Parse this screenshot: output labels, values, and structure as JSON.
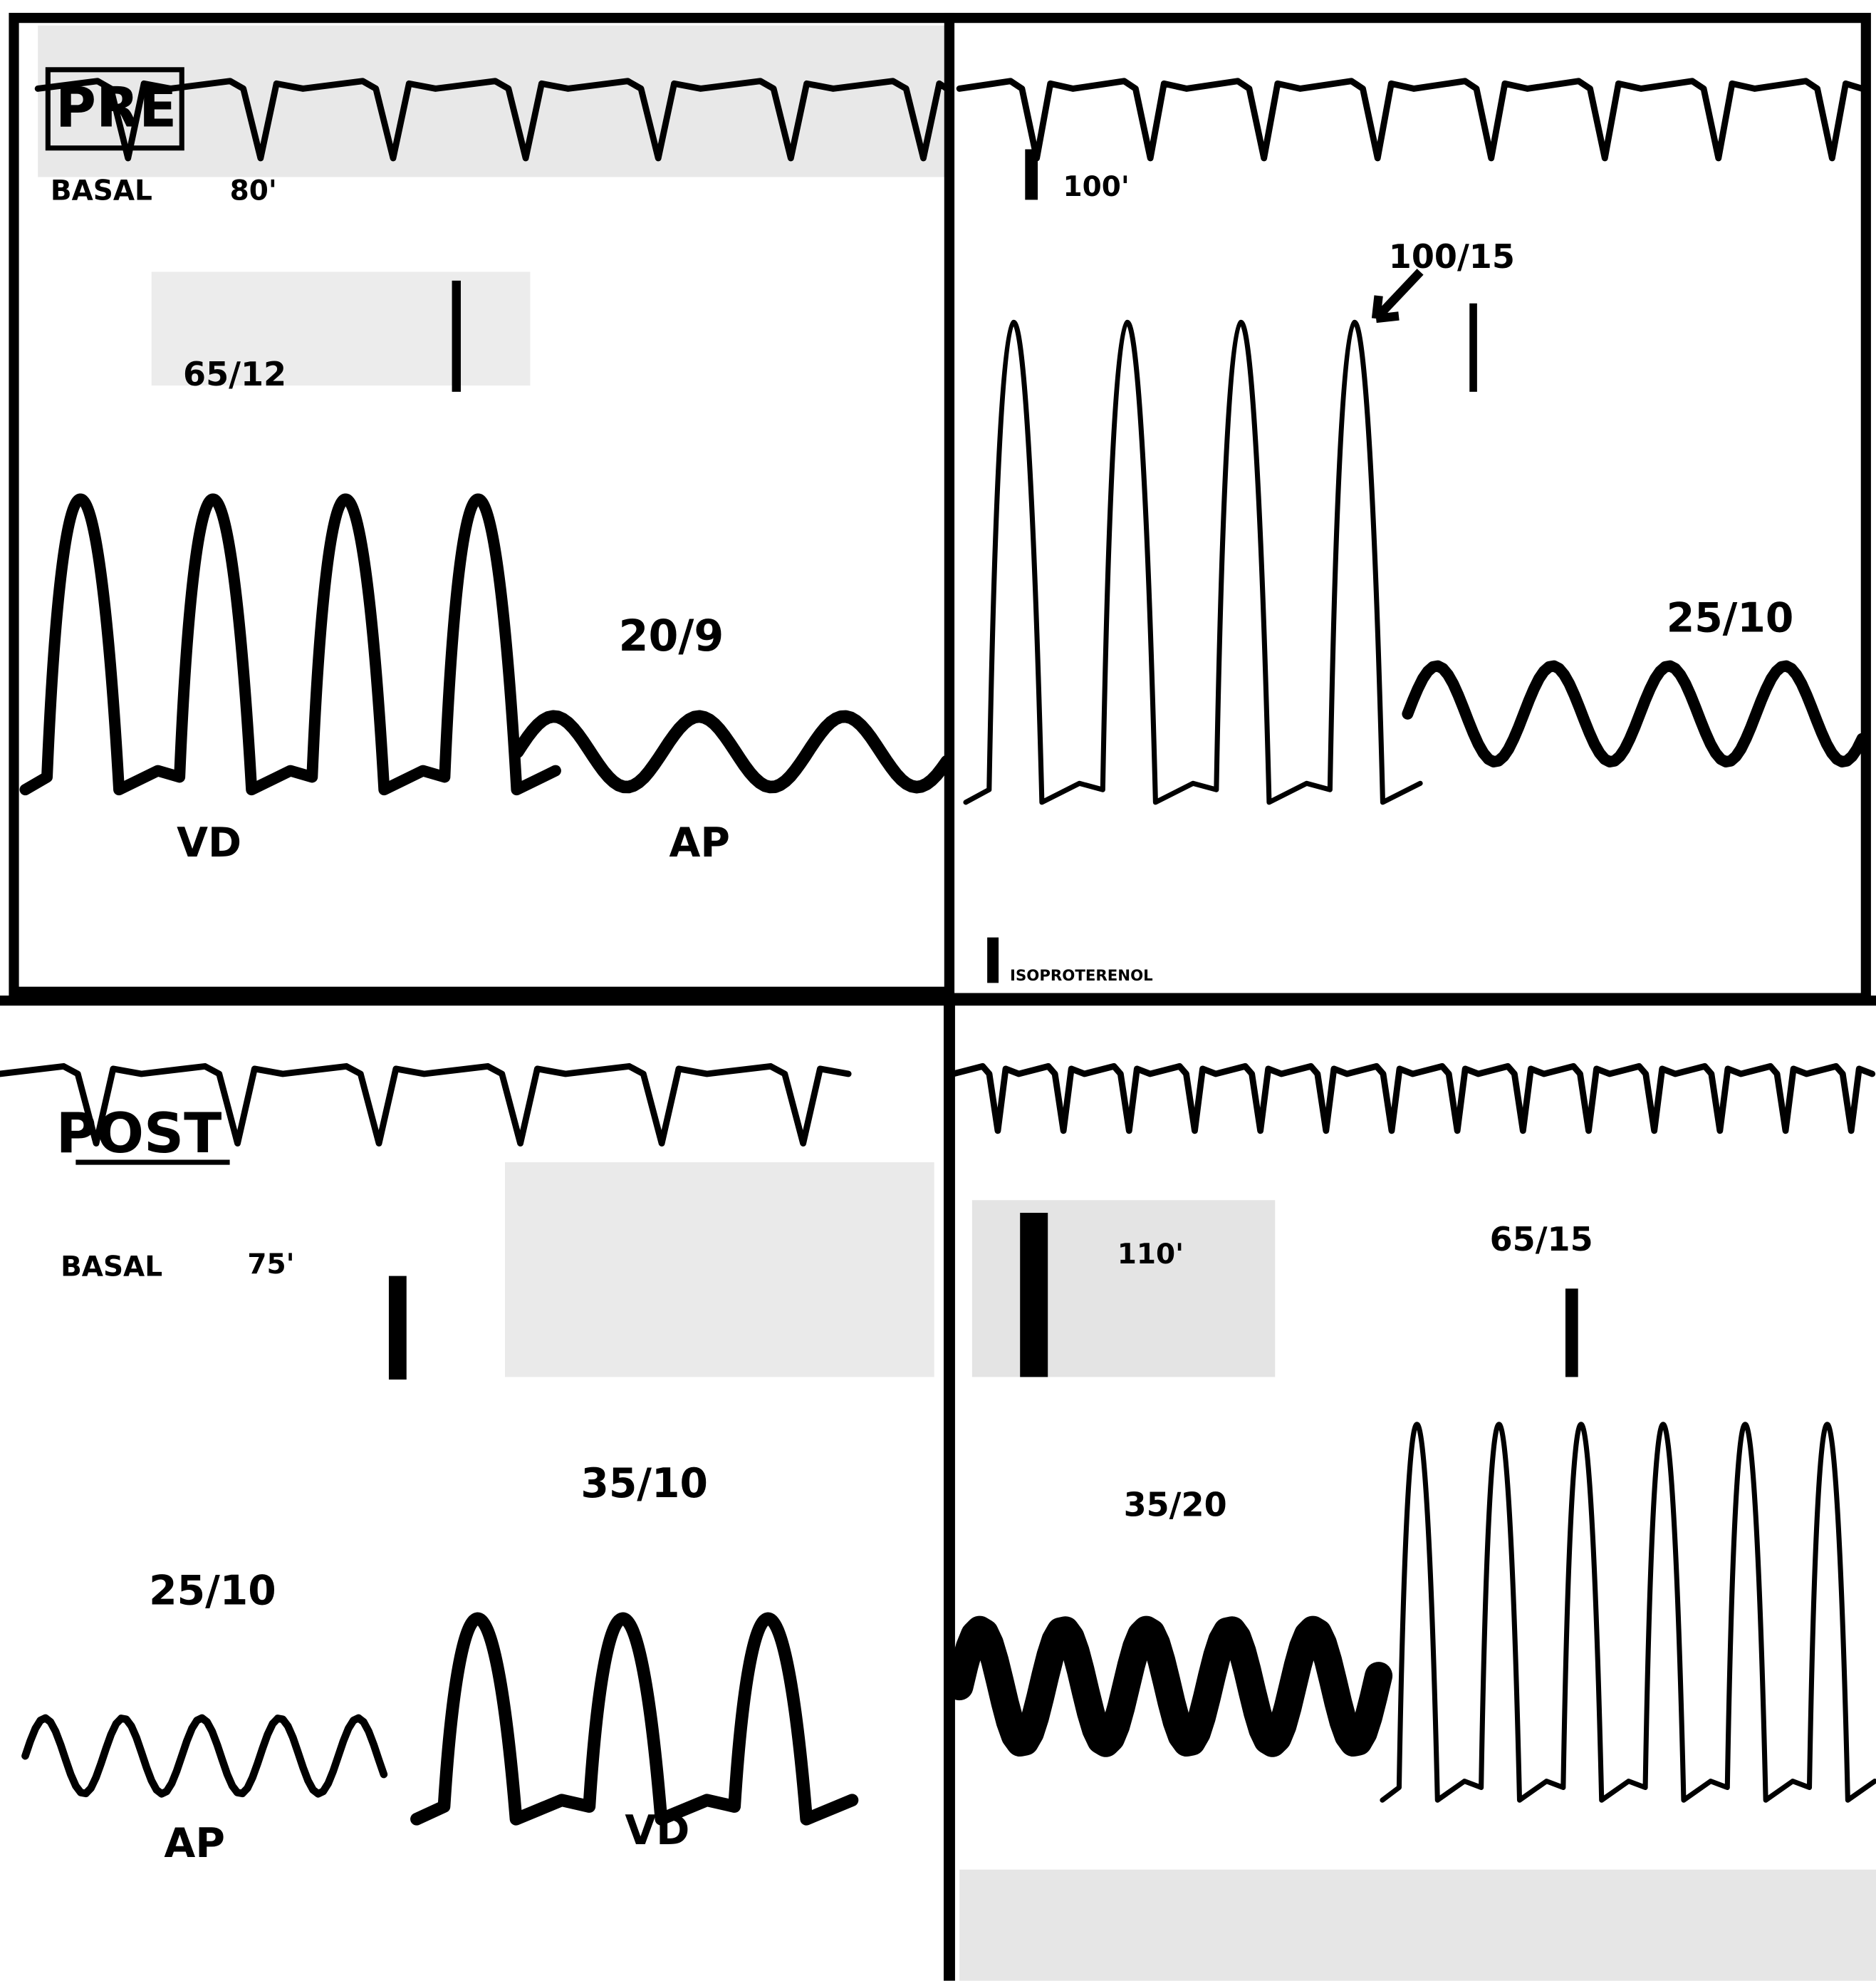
{
  "panels": [
    {
      "title": "PRE",
      "condition": "BASAL",
      "heart_rate": "80'",
      "pressures": [
        "65/12",
        "20/9"
      ],
      "traces": [
        "VD",
        "AP"
      ]
    },
    {
      "heart_rate": "100'",
      "pressures": [
        "100/15",
        "25/10"
      ],
      "drug": "ISOPROTERENOL"
    },
    {
      "title": "POST",
      "condition": "BASAL",
      "heart_rate": "75'",
      "pressures": [
        "35/10",
        "25/10"
      ],
      "traces": [
        "AP",
        "VD"
      ]
    },
    {
      "heart_rate": "110'",
      "pressures": [
        "65/15",
        "35/20"
      ]
    }
  ]
}
